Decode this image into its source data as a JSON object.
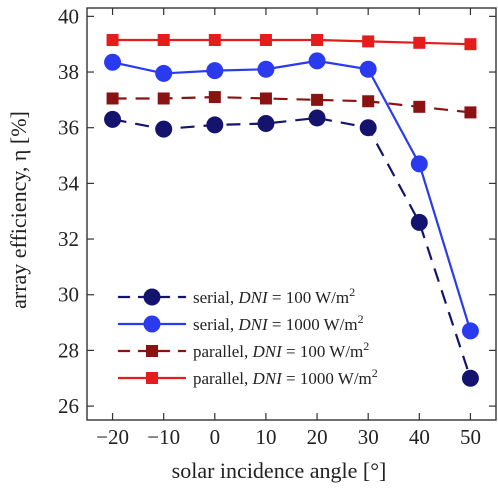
{
  "chart_data": {
    "type": "line",
    "title": "",
    "xlabel": "solar incidence angle [°]",
    "ylabel": "array efficiency, η [%]",
    "x": [
      -20,
      -10,
      0,
      10,
      20,
      30,
      40,
      50
    ],
    "xlim": [
      -25,
      55
    ],
    "ylim": [
      25.5,
      40.3
    ],
    "xticks": [
      "−20",
      "−10",
      "0",
      "10",
      "20",
      "30",
      "40",
      "50"
    ],
    "yticks": [
      "26",
      "28",
      "30",
      "32",
      "34",
      "36",
      "38",
      "40"
    ],
    "ytick_values": [
      26,
      28,
      30,
      32,
      34,
      36,
      38,
      40
    ],
    "grid": false,
    "legend_position": "bottom-left",
    "series": [
      {
        "name": "serial, DNI = 100 W/m2",
        "label_prefix": "serial, ",
        "label_var": "DNI",
        "label_suffix": " = 100 W/m",
        "label_sup": "2",
        "color": "#14146e",
        "dash": true,
        "marker": "circle",
        "values": [
          36.3,
          35.95,
          36.1,
          36.15,
          36.35,
          36.0,
          32.6,
          27.0
        ]
      },
      {
        "name": "serial, DNI = 1000 W/m2",
        "label_prefix": "serial, ",
        "label_var": "DNI",
        "label_suffix": " = 1000 W/m",
        "label_sup": "2",
        "color": "#2a3bef",
        "dash": false,
        "marker": "circle",
        "values": [
          38.35,
          37.95,
          38.05,
          38.1,
          38.4,
          38.1,
          34.7,
          28.7
        ]
      },
      {
        "name": "parallel, DNI = 100 W/m2",
        "label_prefix": "parallel, ",
        "label_var": "DNI",
        "label_suffix": " = 100 W/m",
        "label_sup": "2",
        "color": "#8b1212",
        "dash": true,
        "marker": "square",
        "values": [
          37.05,
          37.05,
          37.1,
          37.05,
          37.0,
          36.95,
          36.75,
          36.55
        ]
      },
      {
        "name": "parallel, DNI = 1000 W/m2",
        "label_prefix": "parallel, ",
        "label_var": "DNI",
        "label_suffix": " = 1000 W/m",
        "label_sup": "2",
        "color": "#e41c1c",
        "dash": false,
        "marker": "square",
        "values": [
          39.15,
          39.15,
          39.15,
          39.15,
          39.15,
          39.1,
          39.05,
          39.0
        ]
      }
    ]
  }
}
